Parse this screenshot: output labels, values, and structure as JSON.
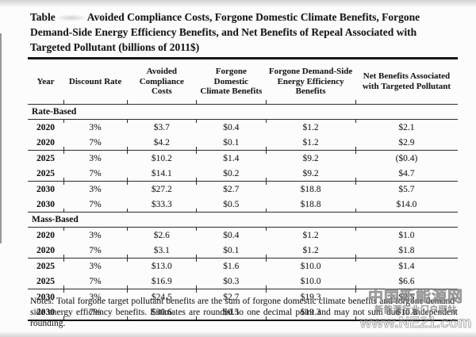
{
  "title": {
    "label": "Table",
    "caption": "Avoided Compliance Costs, Forgone Domestic Climate Benefits, Forgone Demand-Side Energy Efficiency Benefits, and Net Benefits of Repeal Associated with Targeted Pollutant (billions of 2011$)"
  },
  "table": {
    "columns": [
      "Year",
      "Discount Rate",
      "Avoided Compliance Costs",
      "Forgone Domestic Climate Benefits",
      "Forgone Demand-Side Energy Efficiency Benefits",
      "Net Benefits Associated with Targeted Pollutant"
    ],
    "sections": [
      {
        "label": "Rate-Based",
        "rows": [
          [
            "2020",
            "3%",
            "$3.7",
            "$0.4",
            "$1.2",
            "$2.1"
          ],
          [
            "2020",
            "7%",
            "$4.2",
            "$0.1",
            "$1.2",
            "$2.9"
          ],
          [
            "2025",
            "3%",
            "$10.2",
            "$1.4",
            "$9.2",
            "($0.4)"
          ],
          [
            "2025",
            "7%",
            "$14.1",
            "$0.2",
            "$9.2",
            "$4.7"
          ],
          [
            "2030",
            "3%",
            "$27.2",
            "$2.7",
            "$18.8",
            "$5.7"
          ],
          [
            "2030",
            "7%",
            "$33.3",
            "$0.5",
            "$18.8",
            "$14.0"
          ]
        ]
      },
      {
        "label": "Mass-Based",
        "rows": [
          [
            "2020",
            "3%",
            "$2.6",
            "$0.4",
            "$1.2",
            "$1.0"
          ],
          [
            "2020",
            "7%",
            "$3.1",
            "$0.1",
            "$1.2",
            "$1.8"
          ],
          [
            "2025",
            "3%",
            "$13.0",
            "$1.6",
            "$10.0",
            "$1.4"
          ],
          [
            "2025",
            "7%",
            "$16.9",
            "$0.3",
            "$10.0",
            "$6.6"
          ],
          [
            "2030",
            "3%",
            "$24.5",
            "$2.7",
            "$19.3",
            "$2.5"
          ],
          [
            "2030",
            "7%",
            "$30.6",
            "$0.5",
            "$19.3",
            "$10.8"
          ]
        ]
      }
    ]
  },
  "notes": "Notes: Total forgone target pollutant benefits are the sum of forgone domestic climate benefits and forgone demand-side energy efficiency benefits. Estimates are rounded to one decimal point and may not sum due to independent rounding.",
  "watermark": {
    "main": "中国新能源网",
    "sub": "新能源行业门户网站",
    "url": "www.NE21.com"
  },
  "colors": {
    "text": "#1f1f1f",
    "line": "#2b2b2b",
    "watermark_gray": "#8a8a8a",
    "page_bg": "#fcfcfc"
  }
}
